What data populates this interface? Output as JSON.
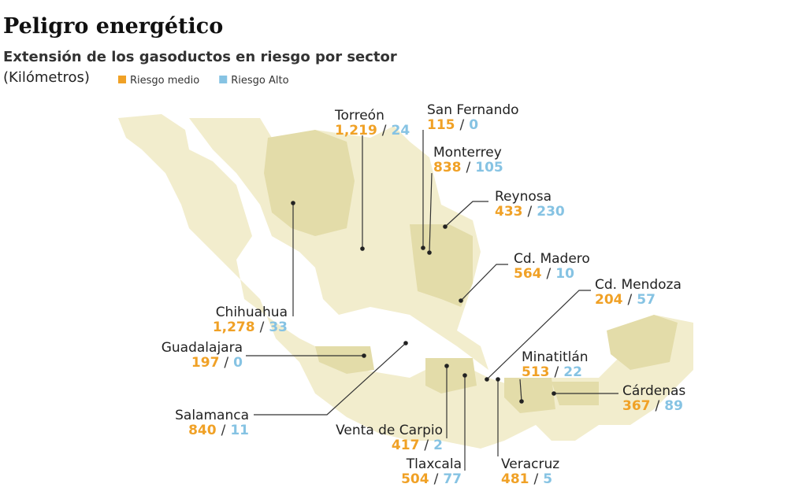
{
  "header": {
    "title": "Peligro energético",
    "subtitle": "Extensión de los gasoductos en riesgo por sector",
    "unit": "(Kilómetros)"
  },
  "legend": [
    {
      "name": "Riesgo medio",
      "color": "#f0a126"
    },
    {
      "name": "Riesgo Alto",
      "color": "#86c3e3"
    }
  ],
  "separator": "/",
  "sectors": [
    {
      "name": "Torreón",
      "medio": {
        "value": 1219,
        "label": "1,219"
      },
      "alto": 24
    },
    {
      "name": "San Fernando",
      "medio": 115,
      "alto": 0
    },
    {
      "name": "Monterrey",
      "medio": 838,
      "alto": 105
    },
    {
      "name": "Reynosa",
      "medio": 433,
      "alto": 230
    },
    {
      "name": "Cd. Madero",
      "medio": 564,
      "alto": 10
    },
    {
      "name": "Cd. Mendoza",
      "medio": 204,
      "alto": 57
    },
    {
      "name": "Minatitlán",
      "medio": 513,
      "alto": 22
    },
    {
      "name": "Cárdenas",
      "medio": 367,
      "alto": 89
    },
    {
      "name": "Chihuahua",
      "medio": {
        "value": 1278,
        "label": "1,278"
      },
      "alto": 33
    },
    {
      "name": "Guadalajara",
      "medio": 197,
      "alto": 0
    },
    {
      "name": "Salamanca",
      "medio": 840,
      "alto": 11
    },
    {
      "name": "Venta de Carpio",
      "medio": 417,
      "alto": 2
    },
    {
      "name": "Tlaxcala",
      "medio": 504,
      "alto": 77
    },
    {
      "name": "Veracruz",
      "medio": 481,
      "alto": 5
    }
  ]
}
